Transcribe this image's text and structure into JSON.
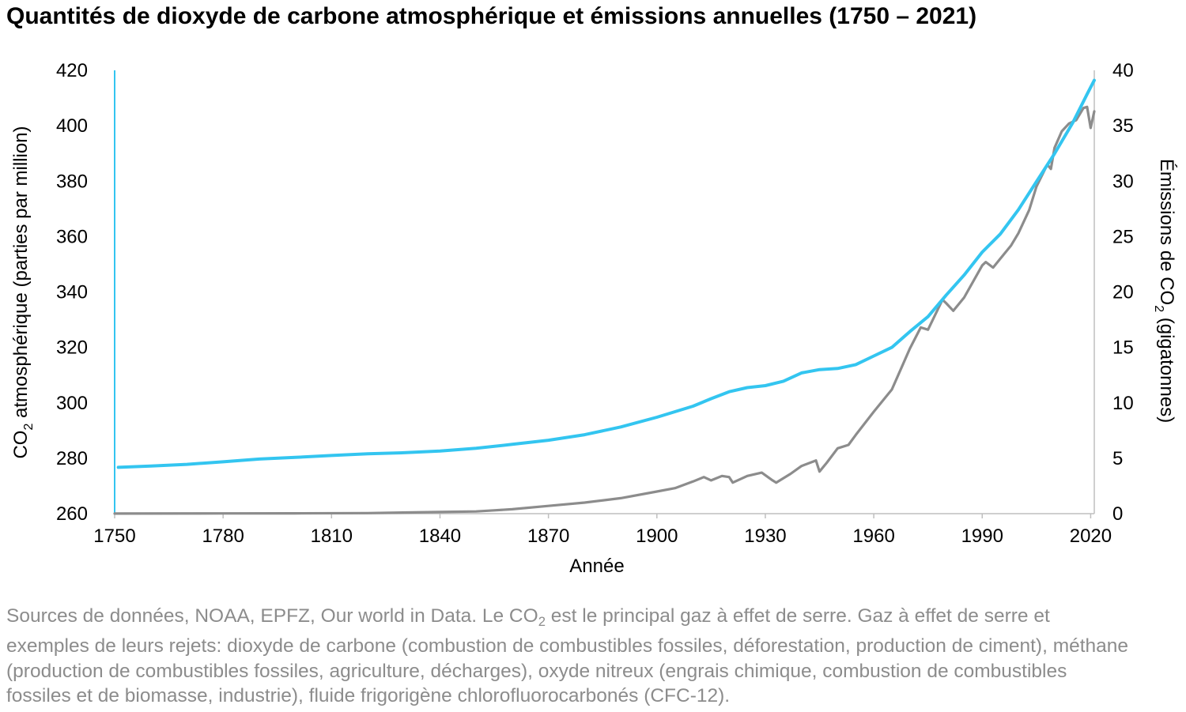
{
  "chart_data": {
    "type": "line",
    "title": "Quantités de dioxyde de carbone atmosphérique et émissions annuelles (1750 – 2021)",
    "xlabel": "Année",
    "ylabel_left": {
      "pre": "CO",
      "sub": "2",
      "post": " atmosphérique (parties par million)"
    },
    "ylabel_right": {
      "pre": "Émissions de CO",
      "sub": "2",
      "post": " (gigatonnes)"
    },
    "xlim": [
      1750,
      2021
    ],
    "ylim_left": [
      260,
      420
    ],
    "ylim_right": [
      0,
      40
    ],
    "x_ticks": [
      "1750",
      "1780",
      "1810",
      "1840",
      "1870",
      "1900",
      "1930",
      "1960",
      "1990",
      "2020"
    ],
    "y_left_ticks": [
      "260",
      "280",
      "300",
      "320",
      "340",
      "360",
      "380",
      "400",
      "420"
    ],
    "y_right_ticks": [
      "0",
      "5",
      "10",
      "15",
      "20",
      "25",
      "30",
      "35",
      "40"
    ],
    "grid": false,
    "legend": "none",
    "series": [
      {
        "axis": "left",
        "color": "#33c5f0",
        "points": [
          [
            1751,
            276.7
          ],
          [
            1760,
            277.2
          ],
          [
            1770,
            277.8
          ],
          [
            1780,
            278.7
          ],
          [
            1790,
            279.7
          ],
          [
            1800,
            280.3
          ],
          [
            1810,
            281.0
          ],
          [
            1820,
            281.6
          ],
          [
            1830,
            282.0
          ],
          [
            1840,
            282.6
          ],
          [
            1850,
            283.6
          ],
          [
            1860,
            285.0
          ],
          [
            1870,
            286.5
          ],
          [
            1880,
            288.5
          ],
          [
            1890,
            291.3
          ],
          [
            1900,
            294.8
          ],
          [
            1910,
            298.8
          ],
          [
            1915,
            301.5
          ],
          [
            1920,
            304.0
          ],
          [
            1925,
            305.5
          ],
          [
            1930,
            306.2
          ],
          [
            1935,
            307.8
          ],
          [
            1940,
            310.8
          ],
          [
            1945,
            312.0
          ],
          [
            1950,
            312.4
          ],
          [
            1955,
            313.8
          ],
          [
            1960,
            316.9
          ],
          [
            1965,
            320.0
          ],
          [
            1970,
            325.7
          ],
          [
            1975,
            331.1
          ],
          [
            1980,
            338.8
          ],
          [
            1985,
            346.1
          ],
          [
            1990,
            354.4
          ],
          [
            1995,
            360.9
          ],
          [
            2000,
            369.7
          ],
          [
            2005,
            379.8
          ],
          [
            2010,
            389.9
          ],
          [
            2015,
            401.0
          ],
          [
            2019,
            411.4
          ],
          [
            2021,
            416.4
          ]
        ]
      },
      {
        "axis": "right",
        "color": "#8c8c8c",
        "points": [
          [
            1750,
            0.01
          ],
          [
            1780,
            0.02
          ],
          [
            1800,
            0.03
          ],
          [
            1820,
            0.05
          ],
          [
            1840,
            0.15
          ],
          [
            1850,
            0.2
          ],
          [
            1855,
            0.3
          ],
          [
            1860,
            0.4
          ],
          [
            1870,
            0.7
          ],
          [
            1880,
            1.0
          ],
          [
            1890,
            1.4
          ],
          [
            1900,
            2.0
          ],
          [
            1905,
            2.3
          ],
          [
            1910,
            2.9
          ],
          [
            1913,
            3.3
          ],
          [
            1915,
            3.0
          ],
          [
            1918,
            3.4
          ],
          [
            1920,
            3.3
          ],
          [
            1921,
            2.8
          ],
          [
            1925,
            3.4
          ],
          [
            1929,
            3.7
          ],
          [
            1932,
            3.0
          ],
          [
            1933,
            2.8
          ],
          [
            1937,
            3.6
          ],
          [
            1940,
            4.3
          ],
          [
            1944,
            4.8
          ],
          [
            1945,
            3.8
          ],
          [
            1947,
            4.6
          ],
          [
            1950,
            5.9
          ],
          [
            1953,
            6.2
          ],
          [
            1955,
            7.1
          ],
          [
            1960,
            9.2
          ],
          [
            1965,
            11.2
          ],
          [
            1970,
            14.9
          ],
          [
            1973,
            16.8
          ],
          [
            1975,
            16.6
          ],
          [
            1979,
            19.3
          ],
          [
            1980,
            19.0
          ],
          [
            1982,
            18.3
          ],
          [
            1985,
            19.5
          ],
          [
            1990,
            22.4
          ],
          [
            1991,
            22.7
          ],
          [
            1993,
            22.2
          ],
          [
            1995,
            23.0
          ],
          [
            1998,
            24.2
          ],
          [
            2000,
            25.3
          ],
          [
            2003,
            27.4
          ],
          [
            2005,
            29.5
          ],
          [
            2008,
            31.5
          ],
          [
            2009,
            31.1
          ],
          [
            2010,
            33.0
          ],
          [
            2012,
            34.5
          ],
          [
            2014,
            35.2
          ],
          [
            2016,
            35.5
          ],
          [
            2018,
            36.6
          ],
          [
            2019,
            36.7
          ],
          [
            2020,
            34.8
          ],
          [
            2021,
            36.3
          ]
        ]
      }
    ]
  },
  "caption": {
    "part1": "Sources de données, NOAA, EPFZ, Our world in Data. Le CO",
    "sub": "2",
    "part2": " est le principal gaz à effet de serre. Gaz à effet de serre et exemples de leurs rejets: dioxyde de carbone (combustion de combustibles fossiles, déforestation, production de ciment), méthane (production de combustibles fossiles, agriculture, décharges), oxyde nitreux (engrais chimique, combustion de combustibles fossiles et de biomasse, industrie), fluide frigorigène chlorofluorocarbonés (CFC-12)."
  }
}
